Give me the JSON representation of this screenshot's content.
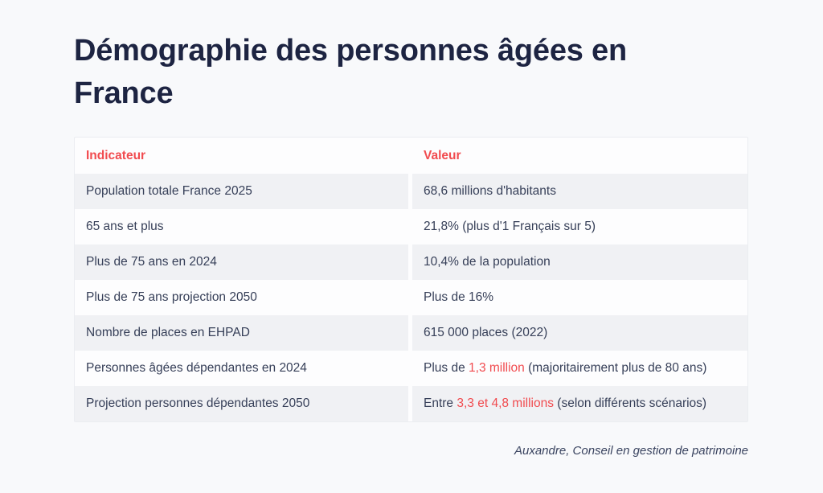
{
  "title": "Démographie des personnes âgées en France",
  "colors": {
    "page_background": "#f8f9fb",
    "title_color": "#1d2442",
    "body_text_color": "#363f58",
    "accent_red": "#f14b4f",
    "row_shade": "#f0f1f4",
    "table_background": "#fdfdfe",
    "table_border": "#ebedf1"
  },
  "table": {
    "headers": [
      "Indicateur",
      "Valeur"
    ],
    "rows": [
      {
        "indicator": "Population totale France 2025",
        "value": [
          {
            "text": "68,6 millions d'habitants",
            "highlight": false
          }
        ]
      },
      {
        "indicator": "65 ans et plus",
        "value": [
          {
            "text": "21,8% (plus d'1 Français sur 5)",
            "highlight": false
          }
        ]
      },
      {
        "indicator": "Plus de 75 ans en 2024",
        "value": [
          {
            "text": "10,4% de la population",
            "highlight": false
          }
        ]
      },
      {
        "indicator": "Plus de 75 ans projection 2050",
        "value": [
          {
            "text": "Plus de 16%",
            "highlight": false
          }
        ]
      },
      {
        "indicator": "Nombre de places en EHPAD",
        "value": [
          {
            "text": "615 000 places (2022)",
            "highlight": false
          }
        ]
      },
      {
        "indicator": "Personnes âgées dépendantes en 2024",
        "value": [
          {
            "text": "Plus de ",
            "highlight": false
          },
          {
            "text": "1,3 million",
            "highlight": true
          },
          {
            "text": " (majoritairement plus de 80 ans)",
            "highlight": false
          }
        ]
      },
      {
        "indicator": "Projection personnes dépendantes 2050",
        "value": [
          {
            "text": "Entre ",
            "highlight": false
          },
          {
            "text": "3,3 et 4,8 millions",
            "highlight": true
          },
          {
            "text": " (selon différents scénarios)",
            "highlight": false
          }
        ]
      }
    ]
  },
  "footer": {
    "source": "Auxandre, Conseil en gestion de patrimoine"
  }
}
